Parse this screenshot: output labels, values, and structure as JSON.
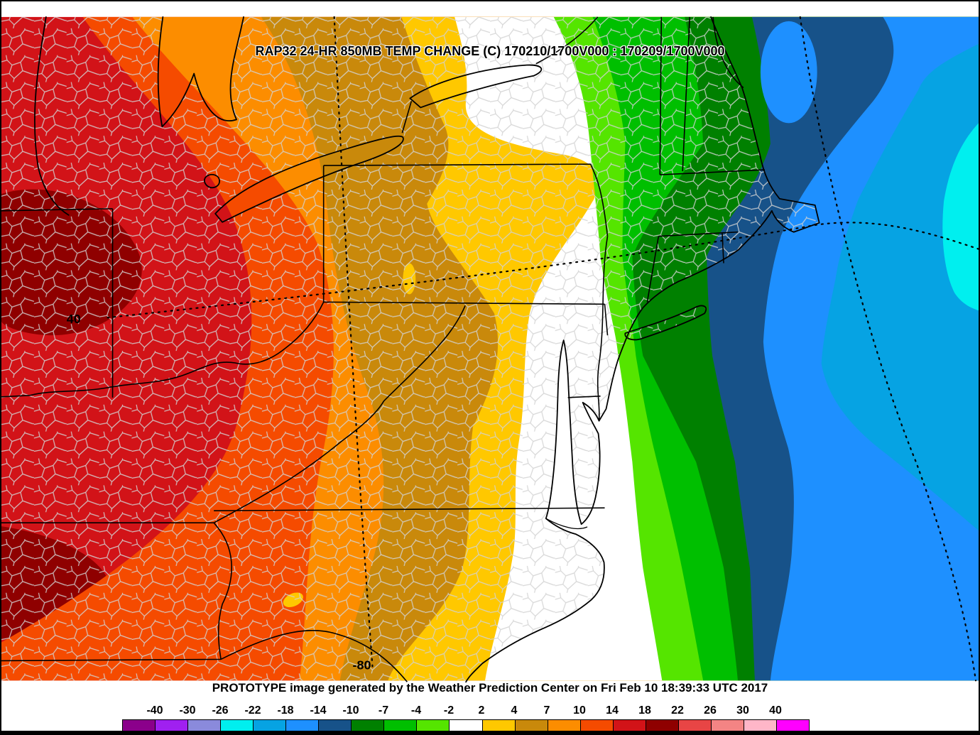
{
  "title": "RAP32 24-HR 850MB TEMP CHANGE (C) 170210/1700V000 : 170209/1700V000",
  "caption": "PROTOTYPE image generated by the Weather Prediction Center on Fri Feb 10 18:39:33 UTC 2017",
  "graticule": {
    "lat_label": "40",
    "lon_label": "-80"
  },
  "legend": {
    "tick_labels": [
      "-40",
      "-30",
      "-26",
      "-22",
      "-18",
      "-14",
      "-10",
      "-7",
      "-4",
      "-2",
      "2",
      "4",
      "7",
      "10",
      "14",
      "18",
      "22",
      "26",
      "30",
      "40"
    ],
    "cell_colors": [
      "#8B008B",
      "#A020F0",
      "#8A8ADC",
      "#00EFEF",
      "#06A3E3",
      "#1E90FF",
      "#175289",
      "#008000",
      "#00BF00",
      "#55E500",
      "#FFFFFF",
      "#FFC800",
      "#C9890B",
      "#FC8D00",
      "#F54B00",
      "#D21318",
      "#8F0000",
      "#E84545",
      "#F48484",
      "#FFB6C8",
      "#FF00FF"
    ]
  },
  "map": {
    "colors": {
      "red": "#D21318",
      "maroon": "#8F0000",
      "orange_red": "#F54B00",
      "orange": "#FC8D00",
      "dark_goldenrod": "#C9890B",
      "gold": "#FFC800",
      "white": "#FFFFFF",
      "light_green": "#55E500",
      "green": "#00BF00",
      "dark_green": "#008000",
      "dark_blue": "#175289",
      "blue": "#1E90FF",
      "light_blue": "#06A3E3",
      "cyan": "#00EFEF",
      "county_line": "#D2D2D2",
      "state_line": "#000000",
      "coast_line": "#000000",
      "graticule_line": "#000000"
    }
  },
  "chart_data": {
    "type": "filled_contour_map",
    "title": "RAP32 24-HR 850MB TEMP CHANGE (C) 170210/1700V000 : 170209/1700V000",
    "units": "C",
    "contour_levels": [
      -40,
      -30,
      -26,
      -22,
      -18,
      -14,
      -10,
      -7,
      -4,
      -2,
      2,
      4,
      7,
      10,
      14,
      18,
      22,
      26,
      30,
      40
    ],
    "palette_colors": [
      "#8B008B",
      "#A020F0",
      "#8A8ADC",
      "#00EFEF",
      "#06A3E3",
      "#1E90FF",
      "#175289",
      "#008000",
      "#00BF00",
      "#55E500",
      "#FFFFFF",
      "#FFC800",
      "#C9890B",
      "#FC8D00",
      "#F54B00",
      "#D21318",
      "#8F0000",
      "#E84545",
      "#F48484",
      "#FFB6C8",
      "#FF00FF"
    ],
    "graticule_labels_shown": [
      "40",
      "-80"
    ],
    "value_pattern": "warming 14-22C west (Ohio Valley / Great Lakes), near 0C along Atlantic coastal plain, cooling to -22 to -26C over the western Atlantic"
  }
}
